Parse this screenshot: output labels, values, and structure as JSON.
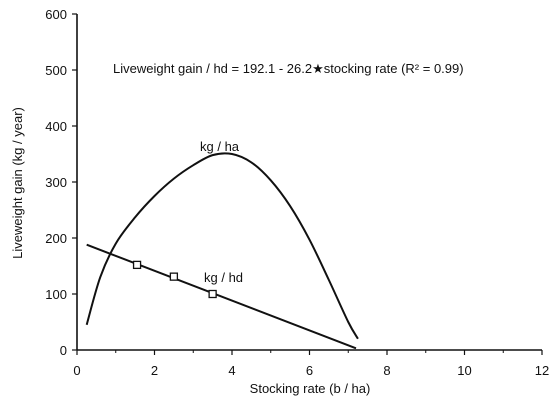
{
  "chart_data": {
    "type": "line",
    "xlabel": "Stocking rate  (b / ha)",
    "ylabel": "Liveweight gain  (kg / year)",
    "xlim": [
      0,
      12
    ],
    "ylim": [
      0,
      600
    ],
    "xticks": [
      "0",
      "2",
      "4",
      "6",
      "8",
      "10",
      "12"
    ],
    "yticks": [
      "0",
      "100",
      "200",
      "300",
      "400",
      "500",
      "600"
    ],
    "grid": false,
    "annotations": {
      "equation": "Liveweight gain / hd = 192.1 - 26.2★stocking rate (R² = 0.99)",
      "kg_ha_label": "kg / ha",
      "kg_hd_label": "kg / hd"
    },
    "series": [
      {
        "name": "kg / ha",
        "x": [
          0.25,
          0.6,
          1.0,
          1.5,
          2.0,
          2.5,
          3.0,
          3.5,
          4.0,
          4.5,
          5.0,
          5.5,
          6.0,
          6.5,
          7.0,
          7.25
        ],
        "y": [
          45,
          130,
          190,
          237,
          275,
          306,
          330,
          348,
          350,
          335,
          303,
          257,
          197,
          125,
          50,
          20
        ]
      },
      {
        "name": "kg / hd",
        "style": "regression-line",
        "x": [
          0.25,
          7.2
        ],
        "y": [
          188,
          3
        ]
      },
      {
        "name": "kg / hd",
        "style": "square-markers",
        "x": [
          1.55,
          2.5,
          3.5
        ],
        "y": [
          152,
          131,
          100
        ]
      }
    ]
  }
}
